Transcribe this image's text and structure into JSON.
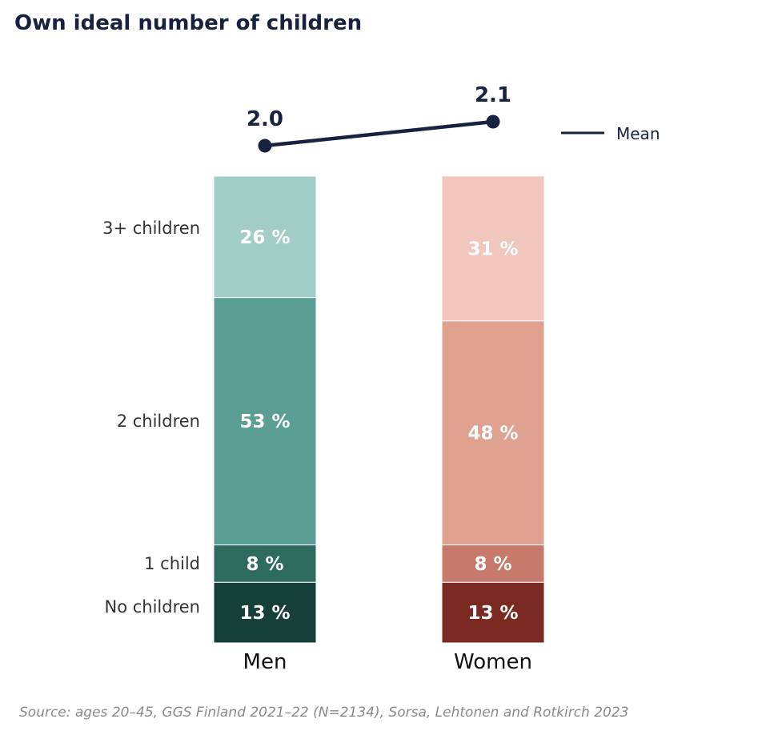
{
  "title": "Own ideal number of children",
  "source": "Source: ages 20–45, GGS Finland 2021–22 (N=2134), Sorsa, Lehtonen and Rotkirch 2023",
  "chart_data": {
    "type": "bar",
    "stacked": true,
    "title": "Own ideal number of children",
    "categories": [
      "Men",
      "Women"
    ],
    "segment_labels": [
      "No children",
      "1 child",
      "2 children",
      "3+ children"
    ],
    "series": [
      {
        "name": "No children",
        "values": [
          13,
          13
        ],
        "colors": [
          "#163f39",
          "#7a2a21"
        ]
      },
      {
        "name": "1 child",
        "values": [
          8,
          8
        ],
        "colors": [
          "#2d6b5f",
          "#c77a6b"
        ]
      },
      {
        "name": "2 children",
        "values": [
          53,
          48
        ],
        "colors": [
          "#5b9e93",
          "#dfa190"
        ]
      },
      {
        "name": "3+ children",
        "values": [
          26,
          31
        ],
        "colors": [
          "#a2cdc7",
          "#f1c6bc"
        ]
      }
    ],
    "mean": {
      "name": "Mean",
      "values": [
        2.0,
        2.1
      ],
      "labels": [
        "2.0",
        "2.1"
      ],
      "color": "#172240"
    },
    "value_suffix": " %",
    "legend": "right"
  }
}
